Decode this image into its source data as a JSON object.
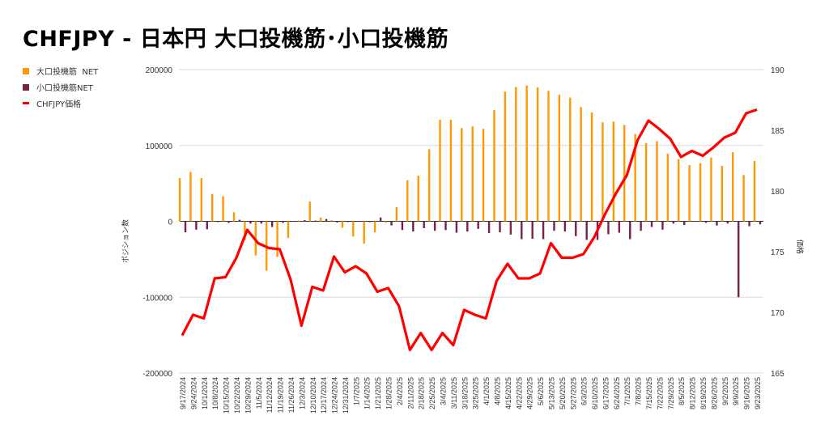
{
  "chart_data": {
    "type": "bar+line",
    "title": "CHFJPY - 日本円 大口投機筋･小口投機筋",
    "ylabel": "ポジション数",
    "y2label": "価格",
    "ylim": [
      -200000,
      200000
    ],
    "y2lim": [
      165,
      190
    ],
    "yticks": [
      "200000",
      "100000",
      "0",
      "-100000",
      "-200000"
    ],
    "y2ticks": [
      "190",
      "185",
      "180",
      "175",
      "170",
      "165"
    ],
    "grid": true,
    "legend_position": "left",
    "categories": [
      "9/17/2024",
      "9/24/2024",
      "10/1/2024",
      "10/8/2024",
      "10/15/2024",
      "10/22/2024",
      "10/29/2024",
      "11/5/2024",
      "11/12/2024",
      "11/19/2024",
      "11/26/2024",
      "12/3/2024",
      "12/10/2024",
      "12/17/2024",
      "12/24/2024",
      "12/31/2024",
      "1/7/2025",
      "1/14/2025",
      "1/21/2025",
      "1/28/2025",
      "2/4/2025",
      "2/11/2025",
      "2/18/2025",
      "2/25/2025",
      "3/4/2025",
      "3/11/2025",
      "3/18/2025",
      "3/25/2025",
      "4/1/2025",
      "4/8/2025",
      "4/15/2025",
      "4/22/2025",
      "4/29/2025",
      "5/6/2025",
      "5/13/2025",
      "5/20/2025",
      "5/27/2025",
      "6/3/2025",
      "6/10/2025",
      "6/17/2025",
      "6/24/2025",
      "7/1/2025",
      "7/8/2025",
      "7/15/2025",
      "7/22/2025",
      "7/29/2025",
      "8/5/2025",
      "8/12/2025",
      "8/19/2025",
      "8/26/2025",
      "9/2/2025",
      "9/9/2025",
      "9/16/2025",
      "9/23/2025"
    ],
    "series": [
      {
        "name": "大口投機筋  NET",
        "type": "bar",
        "color": "#FF9900",
        "values": [
          57000,
          65000,
          57000,
          36000,
          33000,
          12000,
          -25000,
          -45000,
          -65000,
          -47000,
          -22000,
          1000,
          26000,
          5000,
          1500,
          -8500,
          -20000,
          -29500,
          -14500,
          -2000,
          18500,
          54000,
          60000,
          95000,
          134000,
          134000,
          123000,
          125000,
          122000,
          146500,
          171000,
          177000,
          179000,
          176500,
          172000,
          167000,
          163000,
          150500,
          143500,
          130500,
          131500,
          127000,
          115000,
          103000,
          105500,
          89000,
          82000,
          74000,
          76500,
          84000,
          73000,
          91000,
          61000,
          79500
        ]
      },
      {
        "name": "小口投機筋NET",
        "type": "bar",
        "color": "#7B1F4B",
        "values": [
          -14500,
          -11000,
          -10500,
          -1000,
          -2000,
          2000,
          -3000,
          -3000,
          -7500,
          -2000,
          0,
          1500,
          1000,
          3000,
          -1500,
          -1000,
          0,
          -1000,
          5000,
          -5500,
          -11500,
          -13500,
          -9000,
          -12500,
          -11500,
          -15000,
          -13500,
          -10000,
          -15500,
          -14500,
          -17500,
          -23500,
          -23000,
          -23500,
          -12500,
          -13500,
          -19500,
          -24500,
          -24500,
          -17000,
          -15000,
          -23500,
          -12500,
          -7500,
          -11000,
          -3000,
          -5000,
          0,
          -2000,
          -5500,
          -3000,
          -100000,
          -6500,
          -4000
        ]
      },
      {
        "name": "CHFJPY価格",
        "type": "line",
        "axis": "right",
        "color": "#FF0000",
        "values": [
          168.1,
          169.8,
          169.5,
          172.8,
          172.9,
          174.5,
          176.8,
          175.7,
          175.3,
          175.2,
          172.7,
          168.9,
          172.1,
          171.8,
          174.6,
          173.3,
          173.8,
          173.2,
          171.7,
          172.0,
          170.5,
          166.9,
          168.3,
          166.9,
          168.3,
          167.3,
          170.2,
          169.8,
          169.5,
          172.6,
          174.0,
          172.8,
          172.8,
          173.2,
          175.7,
          174.5,
          174.5,
          174.8,
          176.2,
          178.1,
          179.8,
          181.3,
          184.2,
          185.8,
          185.1,
          184.3,
          182.8,
          183.3,
          182.9,
          183.6,
          184.4,
          184.8,
          186.4,
          186.7
        ]
      }
    ]
  }
}
